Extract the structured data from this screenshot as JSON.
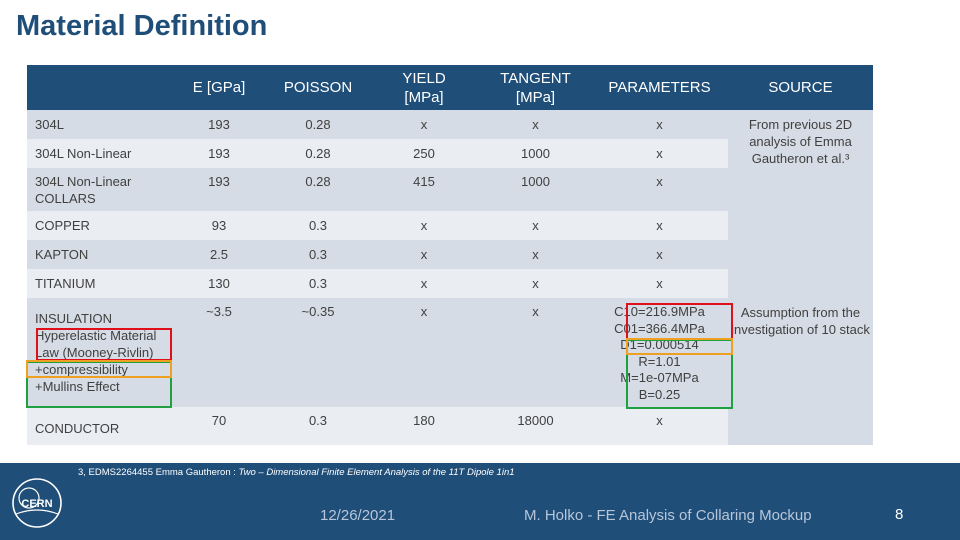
{
  "title": "Material Definition",
  "table": {
    "headers": [
      "",
      "E [GPa]",
      "POISSON",
      "YIELD [MPa]",
      "TANGENT [MPa]",
      "PARAMETERS",
      "SOURCE"
    ],
    "header_lines": {
      "yield": [
        "YIELD",
        "[MPa]"
      ],
      "tangent": [
        "TANGENT",
        "[MPa]"
      ]
    },
    "rows": [
      {
        "name": "304L",
        "e": "193",
        "poisson": "0.28",
        "yield": "x",
        "tangent": "x",
        "parameters": "x"
      },
      {
        "name": "304L Non-Linear",
        "e": "193",
        "poisson": "0.28",
        "yield": "250",
        "tangent": "1000",
        "parameters": "x"
      },
      {
        "name": "304L Non-Linear COLLARS",
        "e": "193",
        "poisson": "0.28",
        "yield": "415",
        "tangent": "1000",
        "parameters": "x"
      },
      {
        "name": "COPPER",
        "e": "93",
        "poisson": "0.3",
        "yield": "x",
        "tangent": "x",
        "parameters": "x"
      },
      {
        "name": "KAPTON",
        "e": "2.5",
        "poisson": "0.3",
        "yield": "x",
        "tangent": "x",
        "parameters": "x"
      },
      {
        "name": "TITANIUM",
        "e": "130",
        "poisson": "0.3",
        "yield": "x",
        "tangent": "x",
        "parameters": "x"
      }
    ],
    "insulation": {
      "name_lines": [
        "INSULATION",
        "Hyperelastic Material",
        "Law (Mooney-Rivlin)",
        "+compressibility",
        "+Mullins Effect"
      ],
      "e": "~3.5",
      "poisson": "~0.35",
      "yield": "x",
      "tangent": "x",
      "parameter_lines": [
        "C10=216.9MPa",
        "C01=366.4MPa",
        "D1=0.000514",
        "R=1.01",
        "M=1e-07MPa",
        "B=0.25"
      ]
    },
    "conductor": {
      "name": "CONDUCTOR",
      "e": "70",
      "poisson": "0.3",
      "yield": "180",
      "tangent": "18000",
      "parameters": "x"
    },
    "sources": {
      "first": "From previous 2D analysis of Emma Gautheron et al.³",
      "second": "Assumption from the investigation of 10 stack"
    }
  },
  "footer": {
    "reference_prefix": "3, EDMS2264455 Emma Gautheron : ",
    "reference_title": "Two – Dimensional Finite Element Analysis of the 11T Dipole 1in1",
    "logo_text": "CERN",
    "date": "12/26/2021",
    "author": "M. Holko - FE Analysis of Collaring Mockup",
    "page": "8"
  },
  "colors": {
    "primary": "#1f4e79",
    "row_odd": "#d6dce5",
    "row_even": "#eaedf2",
    "red": "#e0101a",
    "yellow": "#f0a020",
    "green": "#20a040"
  }
}
